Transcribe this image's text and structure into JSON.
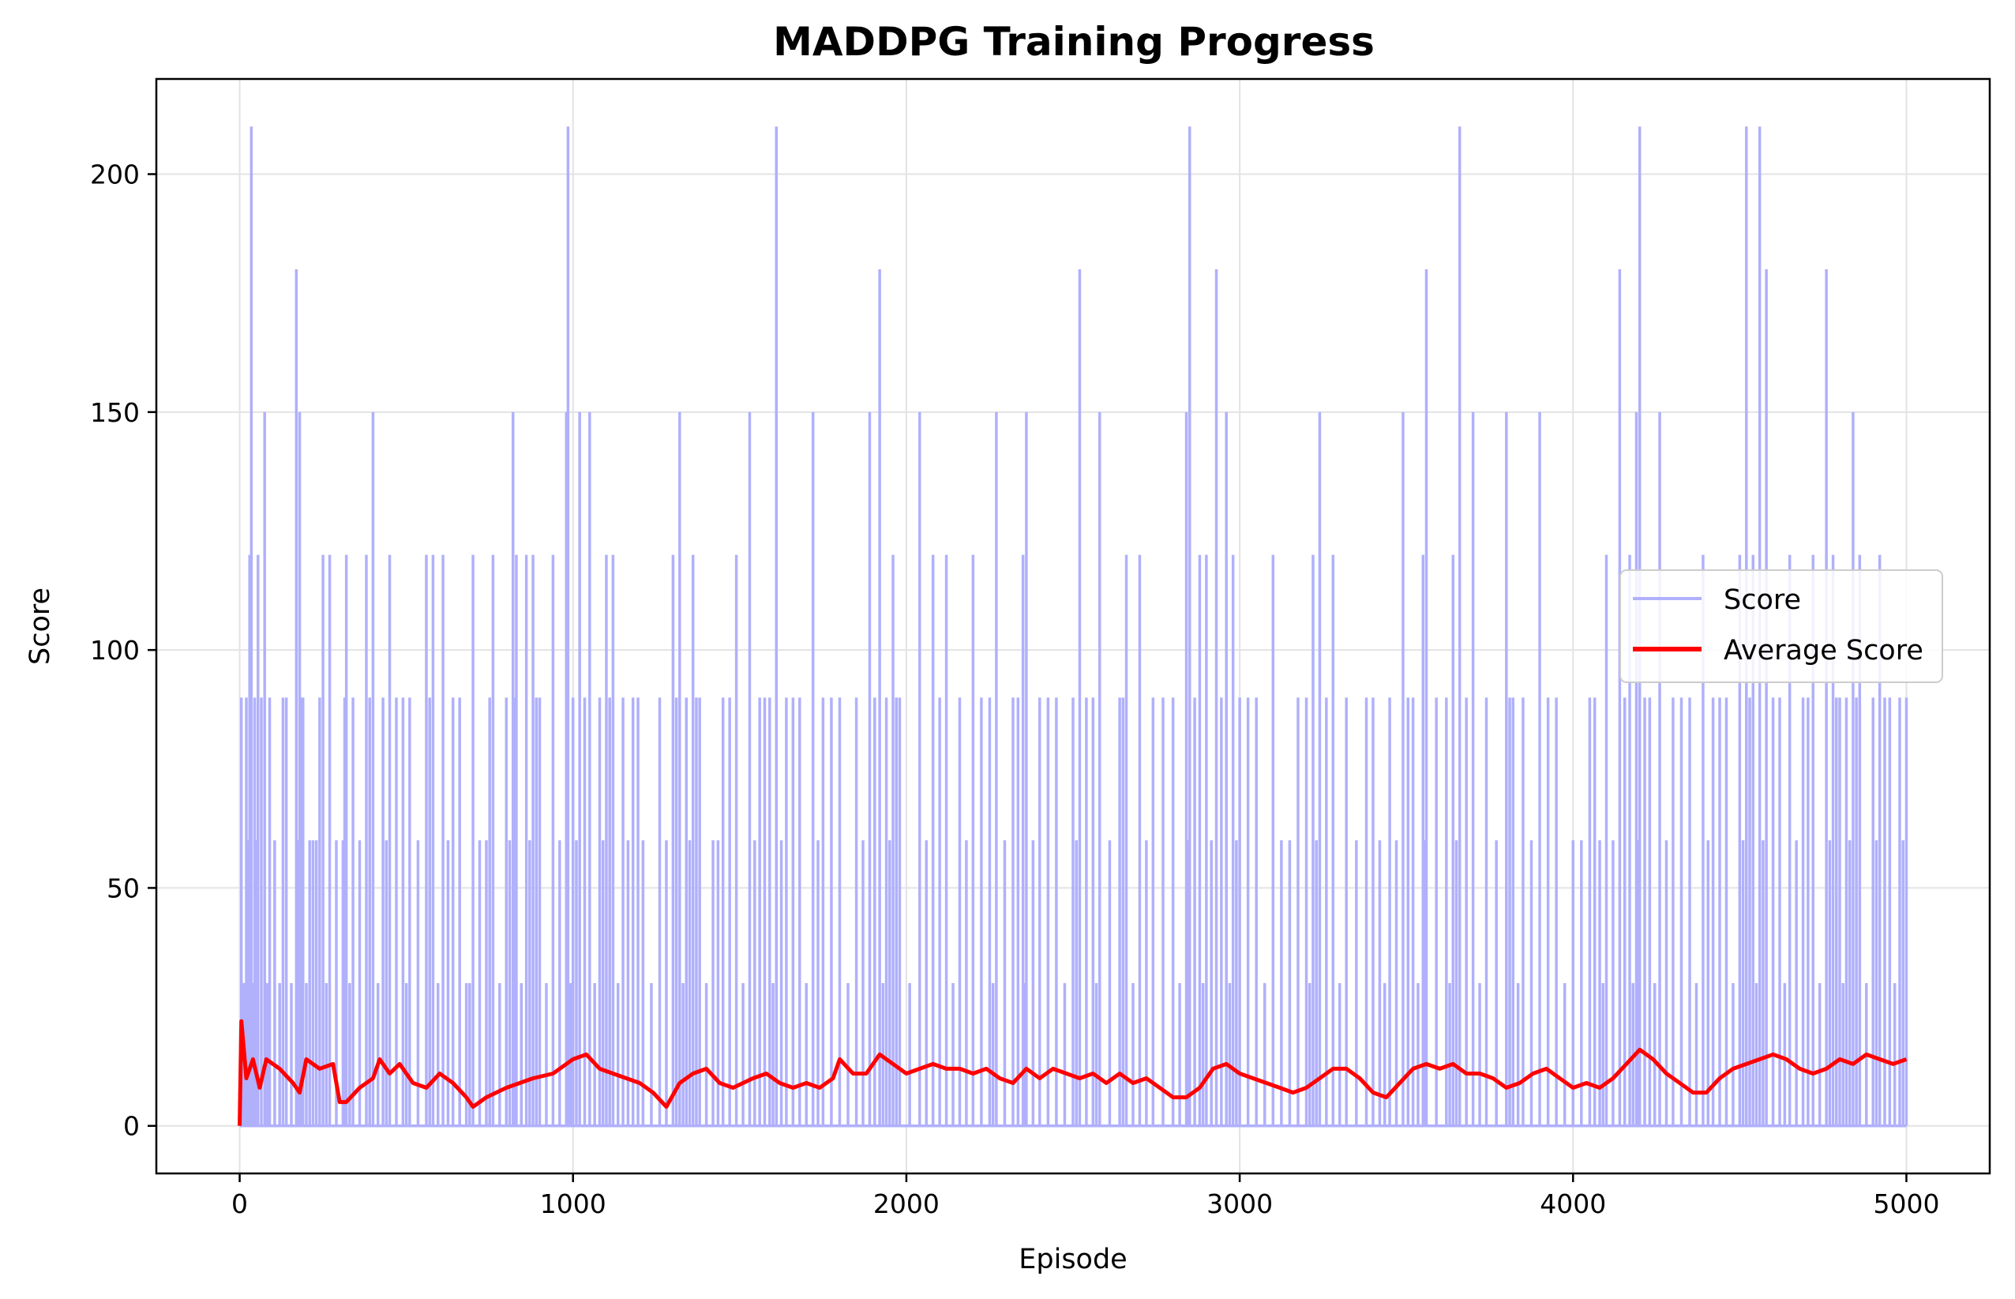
{
  "chart_data": {
    "type": "line",
    "title": "MADDPG Training Progress",
    "xlabel": "Episode",
    "ylabel": "Score",
    "xlim": [
      -250,
      5250
    ],
    "ylim": [
      -10,
      220
    ],
    "x_ticks": [
      0,
      1000,
      2000,
      3000,
      4000,
      5000
    ],
    "y_ticks": [
      0,
      50,
      100,
      150,
      200
    ],
    "grid": true,
    "legend_position": "center-right",
    "series": [
      {
        "name": "Score",
        "color": "#b0b0fb",
        "episodes": 5000,
        "baseline": 0,
        "spikes": [
          [
            5,
            90
          ],
          [
            20,
            90
          ],
          [
            30,
            120
          ],
          [
            35,
            210
          ],
          [
            45,
            90
          ],
          [
            55,
            120
          ],
          [
            75,
            150
          ],
          [
            90,
            90
          ],
          [
            120,
            30
          ],
          [
            140,
            90
          ],
          [
            170,
            180
          ],
          [
            180,
            150
          ],
          [
            190,
            90
          ],
          [
            210,
            60
          ],
          [
            230,
            60
          ],
          [
            250,
            120
          ],
          [
            270,
            120
          ],
          [
            310,
            60
          ],
          [
            320,
            120
          ],
          [
            340,
            90
          ],
          [
            380,
            120
          ],
          [
            400,
            150
          ],
          [
            430,
            90
          ],
          [
            450,
            120
          ],
          [
            490,
            90
          ],
          [
            510,
            90
          ],
          [
            560,
            120
          ],
          [
            580,
            120
          ],
          [
            610,
            120
          ],
          [
            640,
            90
          ],
          [
            680,
            30
          ],
          [
            700,
            120
          ],
          [
            740,
            60
          ],
          [
            760,
            120
          ],
          [
            800,
            90
          ],
          [
            820,
            150
          ],
          [
            830,
            120
          ],
          [
            860,
            120
          ],
          [
            880,
            120
          ],
          [
            900,
            90
          ],
          [
            940,
            120
          ],
          [
            980,
            150
          ],
          [
            985,
            210
          ],
          [
            1000,
            90
          ],
          [
            1020,
            150
          ],
          [
            1050,
            150
          ],
          [
            1080,
            90
          ],
          [
            1100,
            120
          ],
          [
            1120,
            120
          ],
          [
            1150,
            90
          ],
          [
            1180,
            90
          ],
          [
            1210,
            60
          ],
          [
            1260,
            90
          ],
          [
            1300,
            120
          ],
          [
            1320,
            150
          ],
          [
            1340,
            90
          ],
          [
            1360,
            120
          ],
          [
            1380,
            90
          ],
          [
            1420,
            60
          ],
          [
            1450,
            90
          ],
          [
            1490,
            120
          ],
          [
            1530,
            150
          ],
          [
            1560,
            90
          ],
          [
            1590,
            90
          ],
          [
            1610,
            210
          ],
          [
            1640,
            90
          ],
          [
            1680,
            90
          ],
          [
            1720,
            150
          ],
          [
            1750,
            90
          ],
          [
            1800,
            90
          ],
          [
            1850,
            90
          ],
          [
            1890,
            150
          ],
          [
            1920,
            180
          ],
          [
            1940,
            90
          ],
          [
            1960,
            120
          ],
          [
            1980,
            90
          ],
          [
            2040,
            150
          ],
          [
            2080,
            120
          ],
          [
            2120,
            120
          ],
          [
            2160,
            90
          ],
          [
            2200,
            120
          ],
          [
            2250,
            90
          ],
          [
            2270,
            150
          ],
          [
            2320,
            90
          ],
          [
            2350,
            120
          ],
          [
            2360,
            150
          ],
          [
            2400,
            90
          ],
          [
            2450,
            90
          ],
          [
            2500,
            90
          ],
          [
            2520,
            180
          ],
          [
            2560,
            90
          ],
          [
            2580,
            150
          ],
          [
            2640,
            90
          ],
          [
            2660,
            120
          ],
          [
            2700,
            120
          ],
          [
            2740,
            90
          ],
          [
            2800,
            90
          ],
          [
            2840,
            150
          ],
          [
            2850,
            210
          ],
          [
            2880,
            120
          ],
          [
            2900,
            120
          ],
          [
            2930,
            180
          ],
          [
            2960,
            150
          ],
          [
            2980,
            120
          ],
          [
            3000,
            90
          ],
          [
            3050,
            90
          ],
          [
            3100,
            120
          ],
          [
            3150,
            60
          ],
          [
            3200,
            90
          ],
          [
            3220,
            120
          ],
          [
            3240,
            150
          ],
          [
            3280,
            120
          ],
          [
            3320,
            90
          ],
          [
            3380,
            90
          ],
          [
            3420,
            60
          ],
          [
            3450,
            90
          ],
          [
            3490,
            150
          ],
          [
            3520,
            90
          ],
          [
            3550,
            120
          ],
          [
            3560,
            180
          ],
          [
            3620,
            90
          ],
          [
            3640,
            120
          ],
          [
            3660,
            210
          ],
          [
            3700,
            150
          ],
          [
            3740,
            90
          ],
          [
            3800,
            150
          ],
          [
            3820,
            90
          ],
          [
            3850,
            90
          ],
          [
            3900,
            150
          ],
          [
            3950,
            90
          ],
          [
            4000,
            60
          ],
          [
            4050,
            90
          ],
          [
            4080,
            60
          ],
          [
            4100,
            120
          ],
          [
            4140,
            180
          ],
          [
            4170,
            120
          ],
          [
            4190,
            150
          ],
          [
            4200,
            210
          ],
          [
            4230,
            90
          ],
          [
            4260,
            150
          ],
          [
            4300,
            90
          ],
          [
            4350,
            90
          ],
          [
            4390,
            120
          ],
          [
            4420,
            90
          ],
          [
            4460,
            90
          ],
          [
            4500,
            120
          ],
          [
            4520,
            210
          ],
          [
            4540,
            120
          ],
          [
            4560,
            210
          ],
          [
            4580,
            180
          ],
          [
            4620,
            90
          ],
          [
            4650,
            120
          ],
          [
            4690,
            90
          ],
          [
            4720,
            120
          ],
          [
            4760,
            180
          ],
          [
            4780,
            120
          ],
          [
            4800,
            90
          ],
          [
            4820,
            90
          ],
          [
            4840,
            150
          ],
          [
            4860,
            120
          ],
          [
            4900,
            90
          ],
          [
            4920,
            120
          ],
          [
            4950,
            90
          ],
          [
            4980,
            90
          ],
          [
            5000,
            90
          ]
        ]
      },
      {
        "name": "Average Score",
        "color": "#ff0000",
        "points": [
          [
            0,
            0
          ],
          [
            5,
            22
          ],
          [
            20,
            10
          ],
          [
            40,
            14
          ],
          [
            60,
            8
          ],
          [
            80,
            14
          ],
          [
            120,
            12
          ],
          [
            160,
            9
          ],
          [
            180,
            7
          ],
          [
            200,
            14
          ],
          [
            240,
            12
          ],
          [
            280,
            13
          ],
          [
            300,
            5
          ],
          [
            320,
            5
          ],
          [
            360,
            8
          ],
          [
            400,
            10
          ],
          [
            420,
            14
          ],
          [
            450,
            11
          ],
          [
            480,
            13
          ],
          [
            520,
            9
          ],
          [
            560,
            8
          ],
          [
            600,
            11
          ],
          [
            640,
            9
          ],
          [
            680,
            6
          ],
          [
            700,
            4
          ],
          [
            740,
            6
          ],
          [
            800,
            8
          ],
          [
            840,
            9
          ],
          [
            880,
            10
          ],
          [
            940,
            11
          ],
          [
            1000,
            14
          ],
          [
            1040,
            15
          ],
          [
            1080,
            12
          ],
          [
            1120,
            11
          ],
          [
            1160,
            10
          ],
          [
            1200,
            9
          ],
          [
            1240,
            7
          ],
          [
            1280,
            4
          ],
          [
            1320,
            9
          ],
          [
            1360,
            11
          ],
          [
            1400,
            12
          ],
          [
            1440,
            9
          ],
          [
            1480,
            8
          ],
          [
            1540,
            10
          ],
          [
            1580,
            11
          ],
          [
            1620,
            9
          ],
          [
            1660,
            8
          ],
          [
            1700,
            9
          ],
          [
            1740,
            8
          ],
          [
            1780,
            10
          ],
          [
            1800,
            14
          ],
          [
            1840,
            11
          ],
          [
            1880,
            11
          ],
          [
            1920,
            15
          ],
          [
            1960,
            13
          ],
          [
            2000,
            11
          ],
          [
            2040,
            12
          ],
          [
            2080,
            13
          ],
          [
            2120,
            12
          ],
          [
            2160,
            12
          ],
          [
            2200,
            11
          ],
          [
            2240,
            12
          ],
          [
            2280,
            10
          ],
          [
            2320,
            9
          ],
          [
            2360,
            12
          ],
          [
            2400,
            10
          ],
          [
            2440,
            12
          ],
          [
            2480,
            11
          ],
          [
            2520,
            10
          ],
          [
            2560,
            11
          ],
          [
            2600,
            9
          ],
          [
            2640,
            11
          ],
          [
            2680,
            9
          ],
          [
            2720,
            10
          ],
          [
            2760,
            8
          ],
          [
            2800,
            6
          ],
          [
            2840,
            6
          ],
          [
            2880,
            8
          ],
          [
            2920,
            12
          ],
          [
            2960,
            13
          ],
          [
            3000,
            11
          ],
          [
            3040,
            10
          ],
          [
            3080,
            9
          ],
          [
            3120,
            8
          ],
          [
            3160,
            7
          ],
          [
            3200,
            8
          ],
          [
            3240,
            10
          ],
          [
            3280,
            12
          ],
          [
            3320,
            12
          ],
          [
            3360,
            10
          ],
          [
            3400,
            7
          ],
          [
            3440,
            6
          ],
          [
            3480,
            9
          ],
          [
            3520,
            12
          ],
          [
            3560,
            13
          ],
          [
            3600,
            12
          ],
          [
            3640,
            13
          ],
          [
            3680,
            11
          ],
          [
            3720,
            11
          ],
          [
            3760,
            10
          ],
          [
            3800,
            8
          ],
          [
            3840,
            9
          ],
          [
            3880,
            11
          ],
          [
            3920,
            12
          ],
          [
            3960,
            10
          ],
          [
            4000,
            8
          ],
          [
            4040,
            9
          ],
          [
            4080,
            8
          ],
          [
            4120,
            10
          ],
          [
            4160,
            13
          ],
          [
            4200,
            16
          ],
          [
            4240,
            14
          ],
          [
            4280,
            11
          ],
          [
            4320,
            9
          ],
          [
            4360,
            7
          ],
          [
            4400,
            7
          ],
          [
            4440,
            10
          ],
          [
            4480,
            12
          ],
          [
            4520,
            13
          ],
          [
            4560,
            14
          ],
          [
            4600,
            15
          ],
          [
            4640,
            14
          ],
          [
            4680,
            12
          ],
          [
            4720,
            11
          ],
          [
            4760,
            12
          ],
          [
            4800,
            14
          ],
          [
            4840,
            13
          ],
          [
            4880,
            15
          ],
          [
            4920,
            14
          ],
          [
            4960,
            13
          ],
          [
            5000,
            14
          ]
        ]
      }
    ]
  }
}
